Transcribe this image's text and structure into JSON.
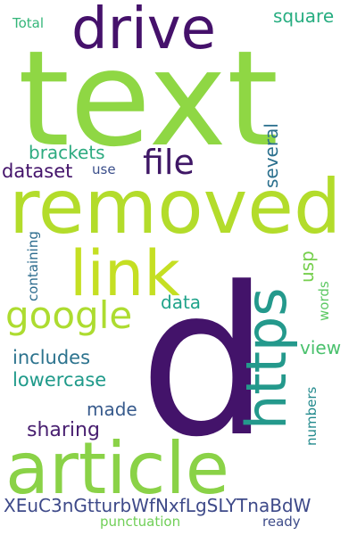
{
  "words": {
    "d": "d",
    "text": "text",
    "removed": "removed",
    "article": "article",
    "drive": "drive",
    "link": "link",
    "https": "https",
    "google": "google",
    "file": "file",
    "several": "several",
    "square": "square",
    "brackets": "brackets",
    "dataset": "dataset",
    "use": "use",
    "containing": "containing",
    "usp": "usp",
    "data": "data",
    "words": "words",
    "view": "view",
    "includes": "includes",
    "lowercase": "lowercase",
    "made": "made",
    "numbers": "numbers",
    "sharing": "sharing",
    "long_token": "XEuC3nGtturbWfNxfLgSLYTnaBdW",
    "punctuation": "punctuation",
    "ready": "ready",
    "total": "Total"
  }
}
